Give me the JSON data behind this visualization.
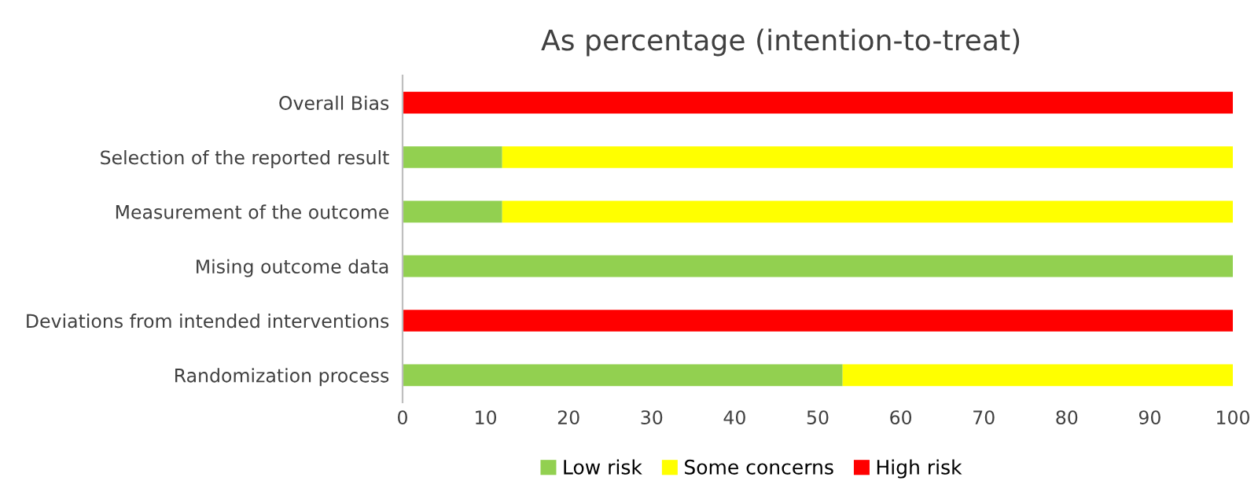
{
  "chart_data": {
    "type": "bar",
    "orientation": "horizontal",
    "stacked": true,
    "title": "As percentage (intention-to-treat)",
    "categories": [
      "Overall Bias",
      "Selection of the reported result",
      "Measurement of the outcome",
      "Mising outcome data",
      "Deviations from intended interventions",
      "Randomization process"
    ],
    "series": [
      {
        "name": "Low risk",
        "color": "#92d050",
        "values": [
          0,
          12,
          12,
          100,
          0,
          53
        ]
      },
      {
        "name": "Some concerns",
        "color": "#ffff00",
        "values": [
          0,
          88,
          88,
          0,
          0,
          47
        ]
      },
      {
        "name": "High risk",
        "color": "#ff0000",
        "values": [
          100,
          0,
          0,
          0,
          100,
          0
        ]
      }
    ],
    "xlim": [
      0,
      100
    ],
    "xticks": [
      0,
      10,
      20,
      30,
      40,
      50,
      60,
      70,
      80,
      90,
      100
    ],
    "grid": false,
    "legend": "bottom"
  }
}
